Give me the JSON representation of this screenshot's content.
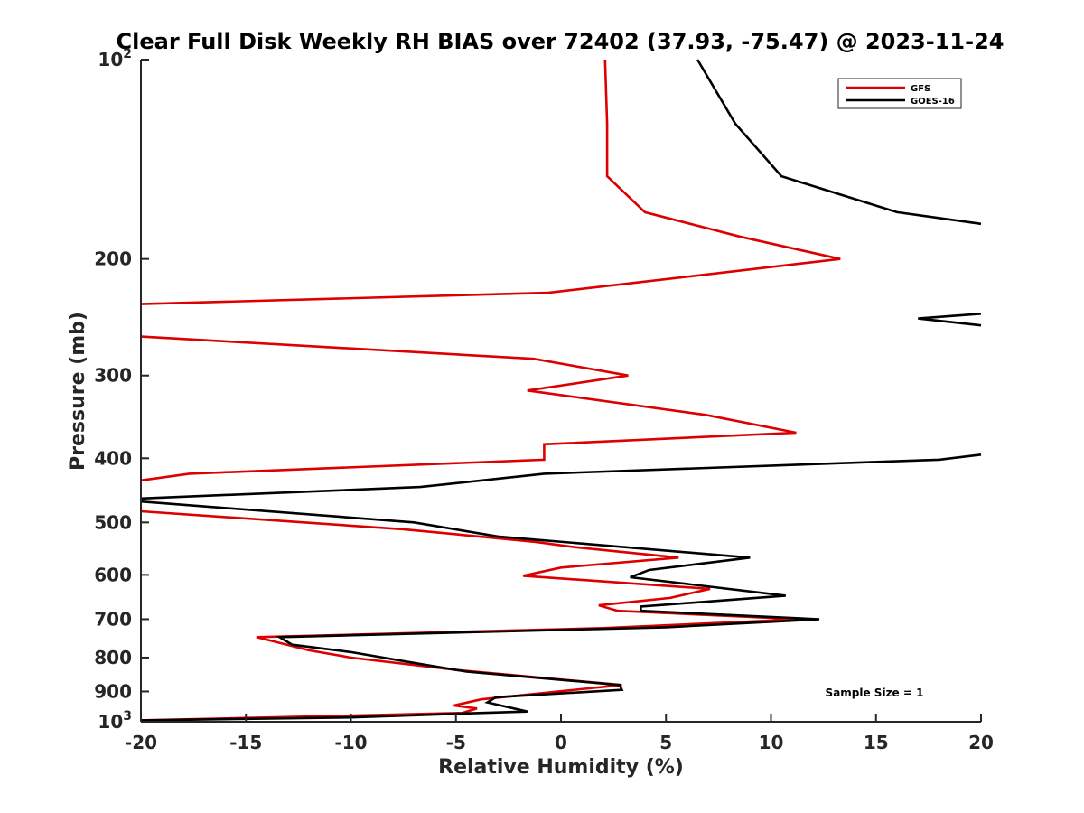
{
  "chart_data": {
    "type": "line",
    "title": "Clear Full Disk Weekly RH BIAS over 72402 (37.93, -75.47) @ 2023-11-24",
    "xlabel": "Relative Humidity (%)",
    "ylabel": "Pressure (mb)",
    "xlim": [
      -20,
      20
    ],
    "ylim": [
      100,
      1000
    ],
    "y_scale": "log",
    "y_direction": "reversed",
    "x_ticks": [
      -20,
      -15,
      -10,
      -5,
      0,
      5,
      10,
      15,
      20
    ],
    "x_tick_labels": [
      "-20",
      "-15",
      "-10",
      "-5",
      "0",
      "5",
      "10",
      "15",
      "20"
    ],
    "y_ticks": [
      100,
      200,
      300,
      400,
      500,
      600,
      700,
      800,
      900,
      1000
    ],
    "y_tick_labels": [
      {
        "base": "10",
        "exp": "2"
      },
      {
        "base": "200",
        "exp": ""
      },
      {
        "base": "300",
        "exp": ""
      },
      {
        "base": "400",
        "exp": ""
      },
      {
        "base": "500",
        "exp": ""
      },
      {
        "base": "600",
        "exp": ""
      },
      {
        "base": "700",
        "exp": ""
      },
      {
        "base": "800",
        "exp": ""
      },
      {
        "base": "900",
        "exp": ""
      },
      {
        "base": "10",
        "exp": "3"
      }
    ],
    "grid": false,
    "legend_position": "top-right",
    "annotation": "Sample Size = 1",
    "series": [
      {
        "name": "GFS",
        "color": "#dd0000",
        "points": [
          {
            "x": 2.1,
            "p": 100
          },
          {
            "x": 2.2,
            "p": 125
          },
          {
            "x": 2.2,
            "p": 150
          },
          {
            "x": 4.0,
            "p": 170
          },
          {
            "x": 8.5,
            "p": 185
          },
          {
            "x": 13.3,
            "p": 200
          },
          {
            "x": -0.6,
            "p": 225
          },
          {
            "x": -20.0,
            "p": 234
          },
          {
            "x": null,
            "p": 245
          },
          {
            "x": -20.0,
            "p": 262
          },
          {
            "x": -1.3,
            "p": 283
          },
          {
            "x": 3.2,
            "p": 300
          },
          {
            "x": -1.6,
            "p": 316
          },
          {
            "x": 6.9,
            "p": 344
          },
          {
            "x": 11.2,
            "p": 366
          },
          {
            "x": -0.8,
            "p": 381
          },
          {
            "x": -0.8,
            "p": 402
          },
          {
            "x": -17.7,
            "p": 422
          },
          {
            "x": -20.0,
            "p": 432
          },
          {
            "x": null,
            "p": 460
          },
          {
            "x": -20.0,
            "p": 481
          },
          {
            "x": -7.5,
            "p": 512
          },
          {
            "x": -1.2,
            "p": 535
          },
          {
            "x": 0.7,
            "p": 545
          },
          {
            "x": 5.6,
            "p": 565
          },
          {
            "x": 0.0,
            "p": 585
          },
          {
            "x": -1.8,
            "p": 602
          },
          {
            "x": 7.1,
            "p": 630
          },
          {
            "x": 5.2,
            "p": 650
          },
          {
            "x": 1.8,
            "p": 667
          },
          {
            "x": 2.7,
            "p": 680
          },
          {
            "x": 11.4,
            "p": 700
          },
          {
            "x": 2.0,
            "p": 722
          },
          {
            "x": -14.5,
            "p": 745
          },
          {
            "x": -12.0,
            "p": 780
          },
          {
            "x": -10.0,
            "p": 800
          },
          {
            "x": -5.0,
            "p": 835
          },
          {
            "x": 2.9,
            "p": 880
          },
          {
            "x": -3.8,
            "p": 925
          },
          {
            "x": -5.1,
            "p": 945
          },
          {
            "x": -4.0,
            "p": 955
          },
          {
            "x": -4.7,
            "p": 970
          },
          {
            "x": -20.0,
            "p": 995
          }
        ]
      },
      {
        "name": "GOES-16",
        "color": "#000000",
        "points": [
          {
            "x": 6.5,
            "p": 100
          },
          {
            "x": 8.3,
            "p": 125
          },
          {
            "x": 10.5,
            "p": 150
          },
          {
            "x": 16.0,
            "p": 170
          },
          {
            "x": 20.0,
            "p": 177
          },
          {
            "x": null,
            "p": 200
          },
          {
            "x": 20.0,
            "p": 242
          },
          {
            "x": 17.0,
            "p": 246
          },
          {
            "x": 20.0,
            "p": 252
          },
          {
            "x": null,
            "p": 300
          },
          {
            "x": 20.0,
            "p": 395
          },
          {
            "x": 18.0,
            "p": 402
          },
          {
            "x": -0.8,
            "p": 422
          },
          {
            "x": -6.7,
            "p": 442
          },
          {
            "x": -20.0,
            "p": 460
          },
          {
            "x": null,
            "p": 462
          },
          {
            "x": -20.0,
            "p": 465
          },
          {
            "x": -7.0,
            "p": 500
          },
          {
            "x": -3.0,
            "p": 525
          },
          {
            "x": 9.0,
            "p": 565
          },
          {
            "x": 4.2,
            "p": 590
          },
          {
            "x": 3.3,
            "p": 605
          },
          {
            "x": 10.7,
            "p": 645
          },
          {
            "x": 3.8,
            "p": 670
          },
          {
            "x": 3.8,
            "p": 680
          },
          {
            "x": 12.3,
            "p": 700
          },
          {
            "x": 5.0,
            "p": 720
          },
          {
            "x": -13.4,
            "p": 745
          },
          {
            "x": -12.8,
            "p": 765
          },
          {
            "x": -10.0,
            "p": 785
          },
          {
            "x": -6.5,
            "p": 820
          },
          {
            "x": -4.5,
            "p": 840
          },
          {
            "x": 2.8,
            "p": 880
          },
          {
            "x": 2.9,
            "p": 895
          },
          {
            "x": -3.1,
            "p": 918
          },
          {
            "x": -3.5,
            "p": 935
          },
          {
            "x": -1.6,
            "p": 965
          },
          {
            "x": -3.9,
            "p": 970
          },
          {
            "x": -10.0,
            "p": 985
          },
          {
            "x": -20.0,
            "p": 995
          }
        ]
      }
    ]
  }
}
